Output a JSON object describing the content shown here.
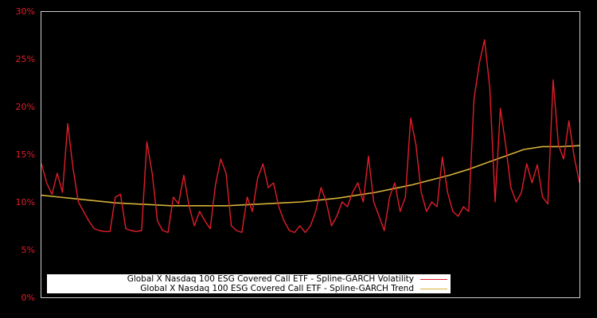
{
  "chart_data": {
    "type": "line",
    "title": "",
    "xlabel": "",
    "ylabel": "",
    "ylim": [
      0,
      30
    ],
    "yticks": [
      "0%",
      "5%",
      "10%",
      "15%",
      "20%",
      "25%",
      "30%"
    ],
    "grid": false,
    "legend_position": "bottom-inside",
    "background": "#000000",
    "frame_color": "#cccccc",
    "tick_label_color": "#e01e2a",
    "x_index_count": 100,
    "series": [
      {
        "name": "Global X Nasdaq 100 ESG Covered Call ETF - Spline-GARCH Volatility",
        "color": "#e01e2a",
        "values": [
          14.0,
          12.0,
          10.8,
          13.0,
          11.0,
          18.2,
          13.5,
          10.0,
          9.0,
          8.0,
          7.2,
          7.0,
          6.9,
          6.9,
          10.5,
          10.8,
          7.2,
          7.0,
          6.9,
          7.0,
          16.3,
          13.0,
          8.0,
          7.0,
          6.8,
          10.5,
          9.8,
          12.8,
          9.5,
          7.5,
          9.0,
          8.0,
          7.2,
          11.8,
          14.5,
          13.0,
          7.5,
          7.0,
          6.8,
          10.5,
          9.0,
          12.5,
          14.0,
          11.5,
          12.0,
          9.5,
          8.0,
          7.0,
          6.8,
          7.5,
          6.8,
          7.5,
          9.0,
          11.5,
          10.0,
          7.5,
          8.5,
          10.0,
          9.5,
          11.0,
          12.0,
          10.0,
          14.8,
          10.0,
          8.5,
          7.0,
          10.5,
          12.0,
          9.0,
          10.5,
          18.8,
          16.0,
          11.0,
          9.0,
          10.0,
          9.5,
          14.7,
          11.0,
          9.0,
          8.5,
          9.5,
          9.0,
          20.8,
          24.5,
          27.0,
          22.0,
          10.0,
          19.8,
          16.0,
          11.5,
          10.0,
          11.0,
          14.0,
          12.0,
          13.9,
          10.5,
          9.8,
          22.8,
          16.0,
          14.5,
          18.5,
          14.7,
          12.0
        ],
        "values_description": "approximate daily/periodic annualized volatility read off the chart, spanning the full x-range"
      },
      {
        "name": "Global X Nasdaq 100 ESG Covered Call ETF - Spline-GARCH Trend",
        "color": "#d4b23a",
        "values": [
          10.7,
          10.5,
          10.3,
          10.1,
          9.9,
          9.8,
          9.7,
          9.6,
          9.6,
          9.6,
          9.6,
          9.7,
          9.8,
          9.9,
          10.0,
          10.2,
          10.4,
          10.7,
          11.0,
          11.4,
          11.8,
          12.3,
          12.8,
          13.4,
          14.1,
          14.8,
          15.5,
          15.8,
          15.8,
          15.9
        ],
        "values_description": "smooth low-frequency trend, sampled evenly across the x-range"
      }
    ]
  },
  "legend": {
    "items": [
      {
        "label": "Global X Nasdaq 100 ESG Covered Call ETF - Spline-GARCH Volatility",
        "color": "#e01e2a"
      },
      {
        "label": "Global X Nasdaq 100 ESG Covered Call ETF - Spline-GARCH Trend",
        "color": "#d4b23a"
      }
    ]
  }
}
